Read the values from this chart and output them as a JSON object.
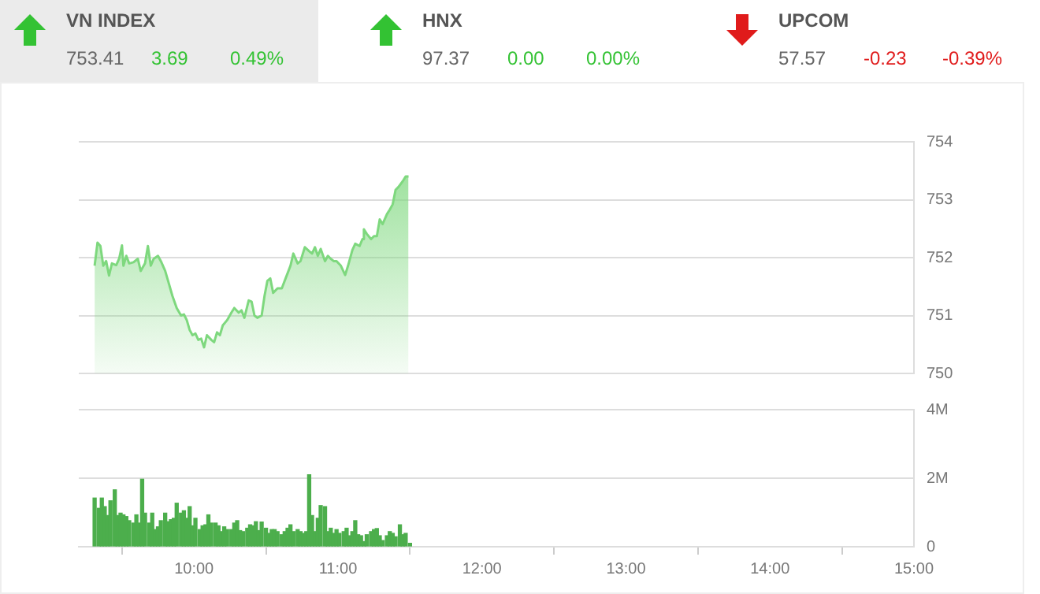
{
  "chart_data": [
    {
      "type": "other",
      "categories": [
        "VN INDEX",
        "HNX",
        "UPCOM"
      ],
      "colors": [
        "#33c233",
        "#33c233",
        "#e01b1b"
      ],
      "series": [
        {
          "values": [
            753.41,
            97.37,
            57.57
          ],
          "value_labels": [
            "753.41",
            "97.37",
            "57.57"
          ]
        },
        {
          "values": [
            3.69,
            0,
            -0.23
          ],
          "value_labels": [
            "3.69",
            "0.00",
            "-0.23"
          ]
        },
        {
          "values": [
            0.49,
            0,
            -0.39
          ],
          "value_labels": [
            "0.49%",
            "0.00%",
            "-0.39%"
          ]
        }
      ]
    },
    {
      "type": "area",
      "xlim": [
        9.2,
        15
      ],
      "ylim": [
        750,
        754
      ],
      "yticks": [
        750,
        751,
        752,
        753,
        754
      ],
      "grid": "y",
      "tick_labels": "y",
      "legend": false,
      "marker": "none",
      "series": [
        {
          "color": "#7ed87e",
          "x": [
            9.31,
            9.33,
            9.35,
            9.37,
            9.39,
            9.41,
            9.43,
            9.46,
            9.48,
            9.5,
            9.51,
            9.53,
            9.55,
            9.58,
            9.61,
            9.63,
            9.66,
            9.68,
            9.7,
            9.72,
            9.75,
            9.77,
            9.8,
            9.82,
            9.85,
            9.88,
            9.91,
            9.93,
            9.95,
            9.97,
            9.99,
            10.01,
            10.03,
            10.05,
            10.07,
            10.09,
            10.12,
            10.14,
            10.16,
            10.18,
            10.2,
            10.23,
            10.26,
            10.28,
            10.31,
            10.33,
            10.35,
            10.38,
            10.4,
            10.42,
            10.44,
            10.47,
            10.49,
            10.51,
            10.53,
            10.55,
            10.58,
            10.61,
            10.63,
            10.65,
            10.67,
            10.69,
            10.72,
            10.74,
            10.77,
            10.8,
            10.82,
            10.84,
            10.86,
            10.88,
            10.91,
            10.93,
            10.95,
            10.97,
            10.99,
            11.02,
            11.05,
            11.07,
            11.1,
            11.12,
            11.15,
            11.17,
            11.18,
            11.2,
            11.23,
            11.25,
            11.27,
            11.29,
            11.31,
            11.34,
            11.36,
            11.38,
            11.4,
            11.42,
            11.45,
            11.47,
            11.49
          ],
          "values": [
            751.86,
            752.26,
            752.2,
            751.86,
            751.94,
            751.69,
            751.9,
            751.87,
            751.98,
            752.21,
            751.86,
            752.03,
            751.9,
            751.92,
            751.98,
            751.77,
            751.9,
            752.2,
            751.86,
            751.98,
            752.03,
            751.94,
            751.77,
            751.6,
            751.34,
            751.13,
            751.0,
            751.02,
            750.92,
            750.75,
            750.66,
            750.69,
            750.58,
            750.6,
            750.45,
            750.66,
            750.58,
            750.54,
            750.71,
            750.66,
            750.83,
            750.92,
            751.05,
            751.13,
            751.05,
            751.09,
            750.96,
            751.26,
            751.24,
            751.0,
            750.96,
            751.0,
            751.34,
            751.6,
            751.64,
            751.39,
            751.47,
            751.47,
            751.6,
            751.73,
            751.86,
            752.07,
            751.9,
            751.94,
            752.18,
            752.11,
            752.07,
            752.18,
            752.03,
            752.15,
            751.94,
            752.03,
            751.98,
            751.94,
            751.94,
            751.86,
            751.7,
            751.86,
            752.13,
            752.24,
            752.2,
            752.32,
            752.49,
            752.41,
            752.32,
            752.37,
            752.37,
            752.66,
            752.58,
            752.75,
            752.83,
            752.92,
            753.17,
            753.22,
            753.32,
            753.4,
            753.4
          ]
        }
      ]
    },
    {
      "type": "bar",
      "xlim": [
        9.2,
        15
      ],
      "xticks": [
        {
          "value": 10,
          "label": "10:00"
        },
        {
          "value": 11,
          "label": "11:00"
        },
        {
          "value": 12,
          "label": "12:00"
        },
        {
          "value": 13,
          "label": "13:00"
        },
        {
          "value": 14,
          "label": "14:00"
        },
        {
          "value": 15,
          "label": "15:00"
        }
      ],
      "ylim": [
        0,
        4
      ],
      "yticks": [
        0,
        {
          "value": 2,
          "label": "2M"
        },
        {
          "value": 4,
          "label": "4M"
        }
      ],
      "grid": "y",
      "legend": false,
      "series": [
        {
          "color": "#4cae4c",
          "x": [
            9.31,
            9.34,
            9.36,
            9.38,
            9.4,
            9.42,
            9.45,
            9.47,
            9.49,
            9.51,
            9.53,
            9.55,
            9.58,
            9.6,
            9.62,
            9.64,
            9.66,
            9.69,
            9.71,
            9.73,
            9.75,
            9.77,
            9.8,
            9.82,
            9.84,
            9.86,
            9.88,
            9.91,
            9.93,
            9.95,
            9.97,
            9.99,
            10.01,
            10.04,
            10.06,
            10.08,
            10.1,
            10.12,
            10.15,
            10.17,
            10.19,
            10.21,
            10.23,
            10.26,
            10.28,
            10.3,
            10.32,
            10.34,
            10.37,
            10.39,
            10.41,
            10.43,
            10.45,
            10.47,
            10.5,
            10.52,
            10.54,
            10.56,
            10.58,
            10.61,
            10.63,
            10.65,
            10.67,
            10.69,
            10.72,
            10.74,
            10.76,
            10.78,
            10.8,
            10.82,
            10.84,
            10.86,
            10.88,
            10.91,
            10.93,
            10.95,
            10.97,
            10.99,
            11.01,
            11.04,
            11.06,
            11.08,
            11.1,
            11.12,
            11.14,
            11.16,
            11.18,
            11.2,
            11.23,
            11.25,
            11.27,
            11.29,
            11.31,
            11.34,
            11.36,
            11.38,
            11.4,
            11.43,
            11.45,
            11.47,
            11.5
          ],
          "values": [
            1.42,
            1.12,
            1.42,
            1.17,
            0.91,
            1.34,
            1.66,
            0.91,
            0.98,
            0.93,
            0.88,
            0.76,
            0.69,
            0.93,
            0.69,
            1.97,
            0.98,
            0.69,
            0.98,
            0.5,
            0.58,
            0.76,
            0.98,
            0.73,
            0.79,
            0.83,
            1.27,
            0.98,
            1.05,
            0.83,
            1.17,
            0.61,
            0.83,
            0.5,
            0.61,
            0.64,
            0.93,
            0.69,
            0.69,
            0.61,
            0.44,
            0.58,
            0.5,
            0.5,
            0.69,
            0.76,
            0.47,
            0.44,
            0.54,
            0.64,
            0.61,
            0.73,
            0.47,
            0.72,
            0.54,
            0.39,
            0.5,
            0.5,
            0.44,
            0.35,
            0.44,
            0.54,
            0.64,
            0.44,
            0.5,
            0.44,
            0.39,
            0.44,
            2.1,
            0.91,
            0.44,
            0.83,
            1.2,
            1.17,
            0.44,
            0.54,
            0.39,
            0.5,
            0.39,
            0.44,
            0.54,
            0.32,
            0.44,
            0.76,
            0.35,
            0.32,
            0.15,
            0.35,
            0.44,
            0.5,
            0.53,
            0.32,
            0.18,
            0.32,
            0.44,
            0.39,
            0.29,
            0.64,
            0.35,
            0.39,
            0.1
          ]
        }
      ]
    }
  ]
}
